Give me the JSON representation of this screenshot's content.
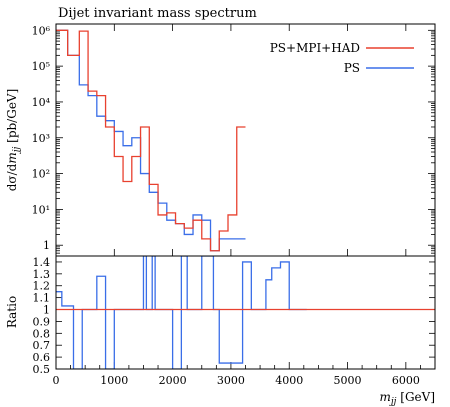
{
  "chart_data": [
    {
      "type": "line",
      "step": true,
      "title": "Dijet invariant mass spectrum",
      "ylabel": "dσ/dm_jj [pb/GeV]",
      "xlabel": "",
      "log_y": true,
      "ylim": [
        0.5,
        1500000
      ],
      "xlim": [
        0,
        6500
      ],
      "legend": "top-right",
      "yticks": [
        {
          "value": 1000000,
          "label": "10⁶"
        },
        {
          "value": 100000,
          "label": "10⁵"
        },
        {
          "value": 10000,
          "label": "10⁴"
        },
        {
          "value": 1000,
          "label": "10³"
        },
        {
          "value": 100,
          "label": "10²"
        },
        {
          "value": 10,
          "label": "10¹"
        },
        {
          "value": 1,
          "label": "1"
        }
      ],
      "series": [
        {
          "name": "PS+MPI+HAD",
          "color": "#e8412f",
          "bins": [
            0,
            200,
            400,
            550,
            700,
            850,
            1000,
            1150,
            1300,
            1450,
            1600,
            1750,
            1900,
            2050,
            2200,
            2350,
            2500,
            2650,
            2800,
            2950,
            3100,
            3250
          ],
          "values": [
            1000000,
            200000,
            950000,
            20000,
            15000,
            2000,
            300,
            60,
            300,
            2000,
            50,
            7,
            8,
            4,
            3,
            5,
            1.5,
            0.7,
            2.5,
            7,
            2000
          ]
        },
        {
          "name": "PS",
          "color": "#3a6ee8",
          "bins": [
            0,
            200,
            400,
            550,
            700,
            850,
            1000,
            1150,
            1300,
            1450,
            1600,
            1750,
            1900,
            2050,
            2200,
            2350,
            2500,
            2650,
            2800,
            2950,
            3100,
            3250
          ],
          "values": [
            1000000,
            200000,
            30000,
            15000,
            4000,
            3000,
            1500,
            600,
            1000,
            100,
            30,
            15,
            5,
            4,
            2,
            7,
            5,
            0.7,
            1.5,
            1.5,
            1.5
          ]
        }
      ]
    },
    {
      "type": "line",
      "step": true,
      "ylabel": "Ratio",
      "xlabel": "m_jj [GeV]",
      "ylim": [
        0.5,
        1.45
      ],
      "xlim": [
        0,
        6500
      ],
      "yticks": [
        0.5,
        0.6,
        0.7,
        0.8,
        0.9,
        1,
        1.1,
        1.2,
        1.3,
        1.4
      ],
      "xticks": [
        0,
        1000,
        2000,
        3000,
        4000,
        5000,
        6000
      ],
      "reference_line": 1.0,
      "series": [
        {
          "name": "PS",
          "color": "#3a6ee8",
          "bins": [
            0,
            100,
            300,
            450,
            700,
            850,
            1000,
            1500,
            1550,
            1650,
            1700,
            1800,
            2000,
            2150,
            2250,
            2500,
            2700,
            2800,
            3000,
            3200,
            3350,
            3500,
            3600,
            3700,
            3850,
            4000,
            4100,
            4200,
            4300
          ],
          "values": [
            1.15,
            1.03,
            0.5,
            1.0,
            1.28,
            0.5,
            1.0,
            1.45,
            1.0,
            1.45,
            1.0,
            1.0,
            0.5,
            1.45,
            1.0,
            1.45,
            1.0,
            0.55,
            0.55,
            1.4,
            1.0,
            1.0,
            1.25,
            1.35,
            1.4,
            1.0,
            1.0,
            1.0
          ]
        },
        {
          "name": "PS+MPI+HAD",
          "color": "#e8412f",
          "bins": [
            0,
            6500
          ],
          "values": [
            1.0
          ]
        }
      ]
    }
  ]
}
